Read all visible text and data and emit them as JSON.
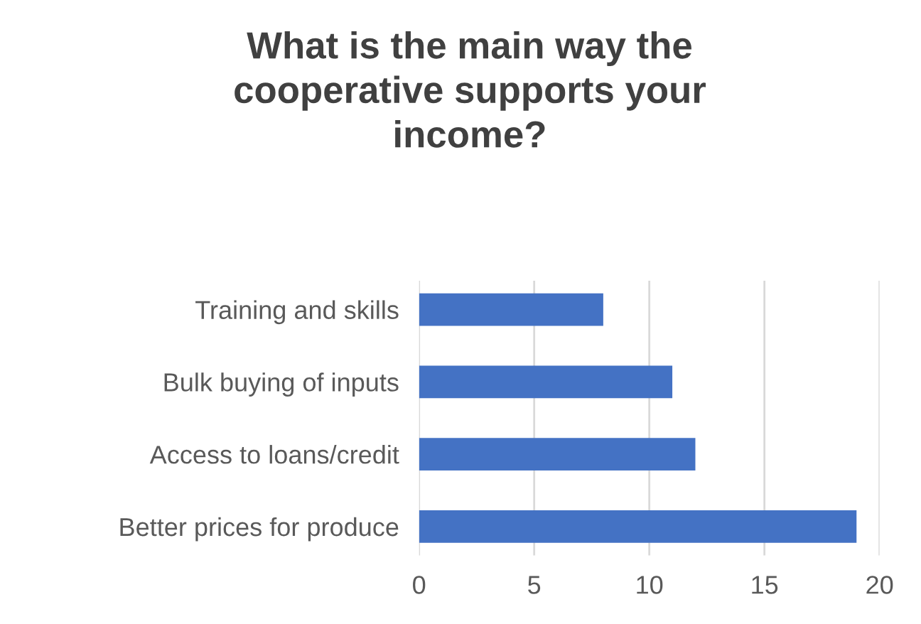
{
  "chart_data": {
    "type": "bar",
    "orientation": "horizontal",
    "title": "What is the main way the\ncooperative supports your\nincome?",
    "categories": [
      "Training and skills",
      "Bulk buying of inputs",
      "Access to loans/credit",
      "Better prices for produce"
    ],
    "values": [
      8,
      11,
      12,
      19
    ],
    "color": "#4472c4",
    "xlim": [
      0,
      20
    ],
    "xticks": [
      0,
      5,
      10,
      15,
      20
    ],
    "grid": "x"
  }
}
